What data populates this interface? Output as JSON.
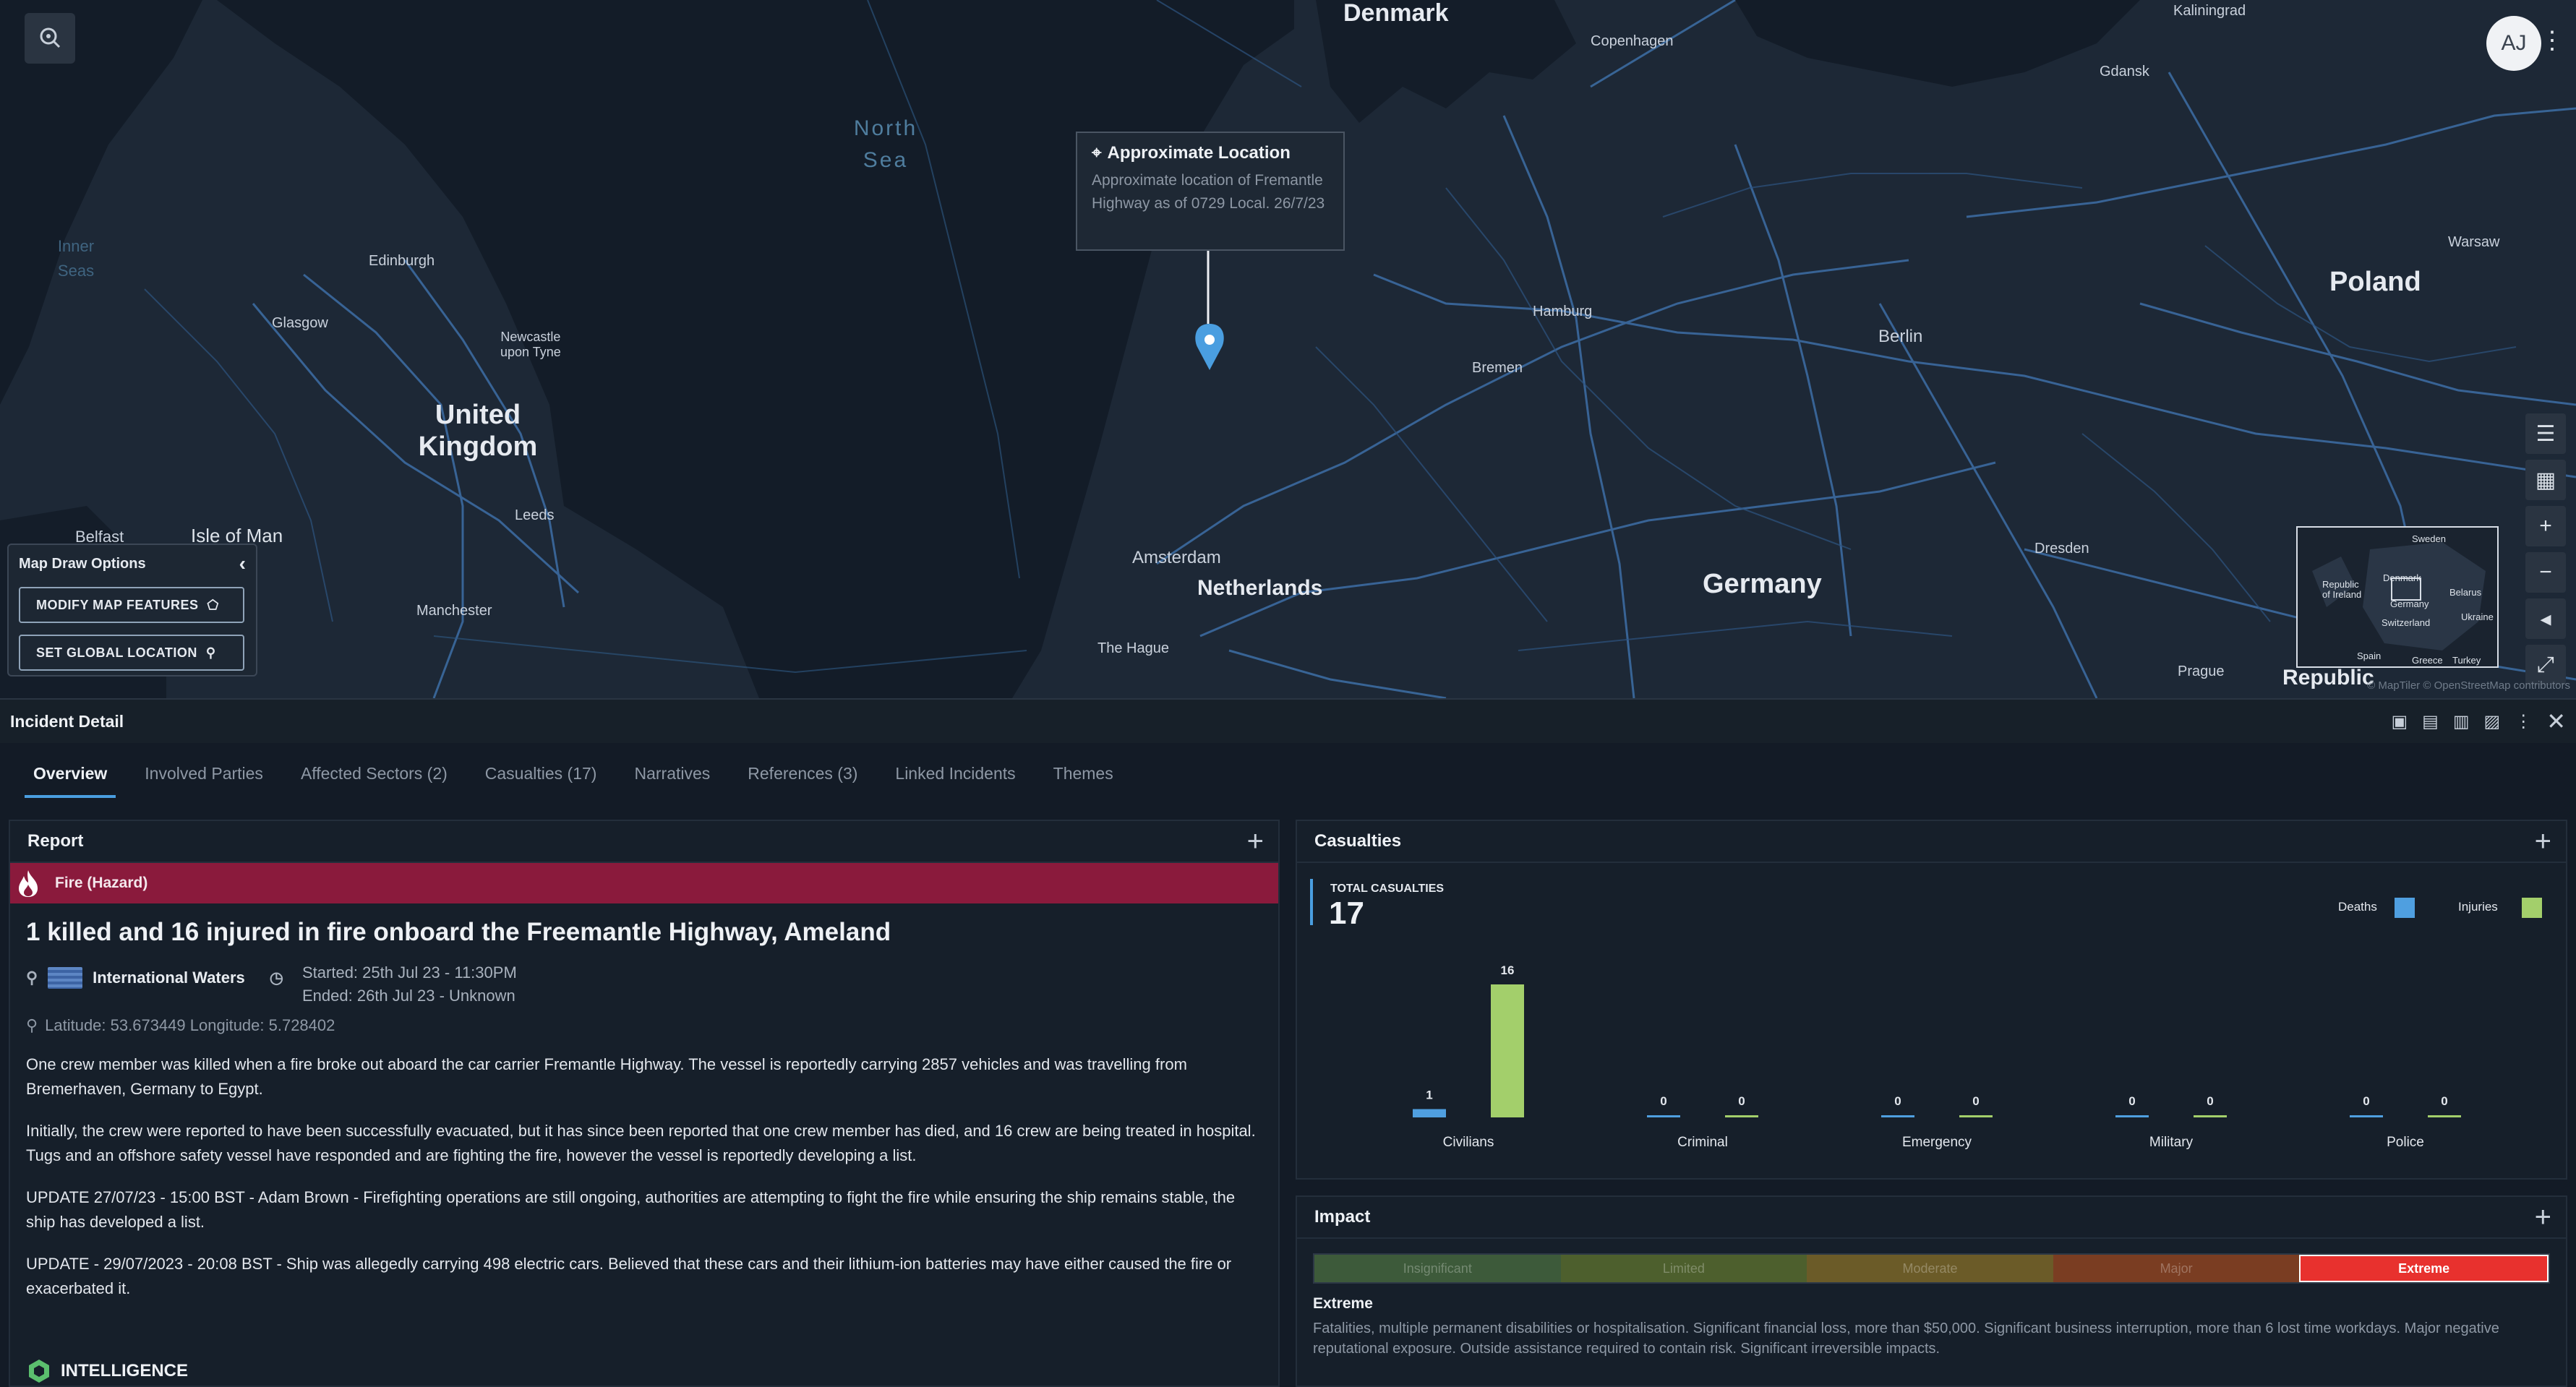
{
  "map": {
    "countries": [
      {
        "id": "uk",
        "label": "United\nKingdom"
      },
      {
        "id": "germany",
        "label": "Germany"
      },
      {
        "id": "poland",
        "label": "Poland"
      },
      {
        "id": "denmark",
        "label": "Denmark"
      },
      {
        "id": "netherlands",
        "label": "Netherlands"
      },
      {
        "id": "czech",
        "label": "Republic"
      }
    ],
    "seas": [
      {
        "id": "north-sea",
        "label": "North\nSea"
      },
      {
        "id": "inner-seas",
        "label": "Inner\nSeas"
      }
    ],
    "cities": [
      {
        "id": "edinburgh",
        "label": "Edinburgh"
      },
      {
        "id": "glasgow",
        "label": "Glasgow"
      },
      {
        "id": "newcastle",
        "label": "Newcastle\nupon Tyne"
      },
      {
        "id": "belfast",
        "label": "Belfast"
      },
      {
        "id": "isle-of-man",
        "label": "Isle of Man"
      },
      {
        "id": "leeds",
        "label": "Leeds"
      },
      {
        "id": "manchester",
        "label": "Manchester"
      },
      {
        "id": "copenhagen",
        "label": "Copenhagen"
      },
      {
        "id": "gdansk",
        "label": "Gdansk"
      },
      {
        "id": "kaliningrad",
        "label": "Kaliningrad"
      },
      {
        "id": "warsaw",
        "label": "Warsaw"
      },
      {
        "id": "hamburg",
        "label": "Hamburg"
      },
      {
        "id": "bremen",
        "label": "Bremen"
      },
      {
        "id": "berlin",
        "label": "Berlin"
      },
      {
        "id": "amsterdam",
        "label": "Amsterdam"
      },
      {
        "id": "the-hague",
        "label": "The Hague"
      },
      {
        "id": "dresden",
        "label": "Dresden"
      },
      {
        "id": "prague",
        "label": "Prague"
      }
    ],
    "tooltip": {
      "title": "Approximate Location",
      "body": "Approximate location of Fremantle Highway as of 0729 Local. 26/7/23"
    },
    "avatar_initials": "AJ",
    "draw_panel": {
      "title": "Map Draw Options",
      "modify_label": "MODIFY MAP FEATURES",
      "set_location_label": "SET GLOBAL LOCATION"
    },
    "minimap_labels": [
      "Sweden",
      "Denmark",
      "Republic\nof Ireland",
      "Belarus",
      "Germany",
      "Ukraine",
      "Switzerland",
      "Spain",
      "Greece",
      "Turkey"
    ],
    "attribution": "© MapTiler © OpenStreetMap contributors"
  },
  "detail": {
    "title": "Incident Detail",
    "tabs": [
      "Overview",
      "Involved Parties",
      "Affected Sectors (2)",
      "Casualties (17)",
      "Narratives",
      "References (3)",
      "Linked Incidents",
      "Themes"
    ],
    "active_tab": "Overview"
  },
  "report": {
    "title": "Report",
    "hazard": "Fire (Hazard)",
    "headline": "1 killed and 16 injured in fire onboard the Freemantle Highway, Ameland",
    "location": "International Waters",
    "started": "Started: 25th Jul 23 - 11:30PM",
    "ended": "Ended: 26th Jul 23 - Unknown",
    "coords": "Latitude: 53.673449 Longitude: 5.728402",
    "paragraphs": [
      "One crew member was killed when a fire broke out aboard the car carrier Fremantle Highway. The vessel is reportedly carrying 2857 vehicles and was travelling from Bremerhaven, Germany to Egypt.",
      "Initially, the crew were reported to have been successfully evacuated, but it has since been reported that one crew member has died, and 16 crew are being treated in hospital. Tugs and an offshore safety vessel have responded and are fighting the fire, however the vessel is reportedly developing a list.",
      "UPDATE 27/07/23 - 15:00 BST - Adam Brown - Firefighting operations are still ongoing, authorities are attempting to fight the fire while ensuring the ship remains stable, the ship has developed a list.",
      "UPDATE - 29/07/2023 - 20:08 BST - Ship was allegedly carrying 498 electric cars. Believed that these cars and their lithium-ion batteries may have either caused the fire or exacerbated it."
    ],
    "intelligence_label": "INTELLIGENCE"
  },
  "casualties": {
    "title": "Casualties",
    "total_label": "TOTAL CASUALTIES",
    "total": "17",
    "legend": [
      {
        "name": "Deaths",
        "color": "#4f9fe0"
      },
      {
        "name": "Injuries",
        "color": "#a3cf6b"
      }
    ]
  },
  "chart_data": {
    "type": "bar",
    "categories": [
      "Civilians",
      "Criminal",
      "Emergency",
      "Military",
      "Police"
    ],
    "series": [
      {
        "name": "Deaths",
        "values": [
          1,
          0,
          0,
          0,
          0
        ],
        "color": "#4f9fe0"
      },
      {
        "name": "Injuries",
        "values": [
          16,
          0,
          0,
          0,
          0
        ],
        "color": "#a3cf6b"
      }
    ],
    "ylim": [
      0,
      16
    ],
    "legend": "top-right",
    "grid": false
  },
  "impact": {
    "title": "Impact",
    "levels": [
      {
        "label": "Insignificant",
        "color": "#3d5a3a"
      },
      {
        "label": "Limited",
        "color": "#4d5f2d"
      },
      {
        "label": "Moderate",
        "color": "#6b5b28"
      },
      {
        "label": "Major",
        "color": "#7a3d22"
      },
      {
        "label": "Extreme",
        "color": "#e8312e"
      }
    ],
    "selected": "Extreme",
    "selected_label": "Extreme",
    "description": "Fatalities, multiple permanent disabilities or hospitalisation. Significant financial loss, more than $50,000. Significant business interruption, more than 6 lost time workdays. Major negative reputational exposure. Outside assistance required to contain risk. Significant irreversible impacts."
  }
}
